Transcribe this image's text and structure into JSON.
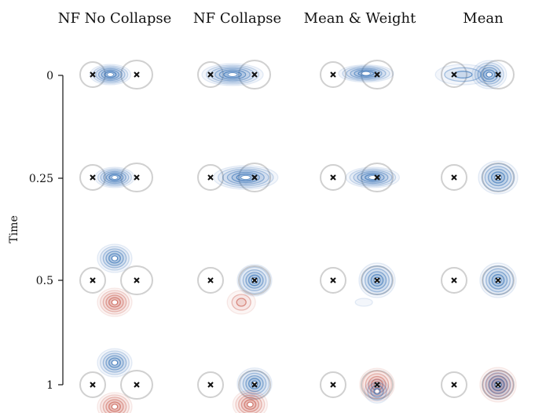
{
  "columns": [
    "NF No Collapse",
    "NF Collapse",
    "Mean & Weight",
    "Mean"
  ],
  "y_axis": {
    "label": "Time",
    "ticks": [
      "0",
      "0.25",
      "0.5",
      "1"
    ]
  },
  "colors": {
    "blue": "#2f6db5",
    "red": "#c8584a",
    "circle": "#d0d0d0",
    "marker": "#111111",
    "axis": "#111111"
  },
  "panels": [
    [
      {
        "blobs": [
          {
            "c": "blue",
            "dx": 0.4,
            "dy": 0.0,
            "w": 52,
            "h": 26,
            "rings": 7
          }
        ]
      },
      {
        "blobs": [
          {
            "c": "blue",
            "dx": 0.5,
            "dy": 0.0,
            "w": 78,
            "h": 28,
            "rings": 7
          }
        ]
      },
      {
        "blobs": [
          {
            "c": "blue",
            "dx": 0.75,
            "dy": -0.05,
            "w": 70,
            "h": 22,
            "rings": 7
          }
        ]
      },
      {
        "blobs": [
          {
            "c": "blue",
            "dx": 0.8,
            "dy": 0.0,
            "w": 44,
            "h": 36,
            "rings": 6
          },
          {
            "c": "blue",
            "dx": 0.2,
            "dy": 0.0,
            "w": 70,
            "h": 26,
            "rings": 3
          }
        ]
      }
    ],
    [
      {
        "blobs": [
          {
            "c": "blue",
            "dx": 0.5,
            "dy": 0.0,
            "w": 50,
            "h": 26,
            "rings": 7
          }
        ]
      },
      {
        "blobs": [
          {
            "c": "blue",
            "dx": 0.8,
            "dy": 0.0,
            "w": 82,
            "h": 30,
            "rings": 7
          }
        ]
      },
      {
        "blobs": [
          {
            "c": "blue",
            "dx": 0.9,
            "dy": 0.0,
            "w": 68,
            "h": 26,
            "rings": 7
          }
        ]
      },
      {
        "blobs": [
          {
            "c": "blue",
            "dx": 1.0,
            "dy": 0.0,
            "w": 50,
            "h": 42,
            "rings": 6
          }
        ]
      }
    ],
    [
      {
        "blobs": [
          {
            "c": "blue",
            "dx": 0.5,
            "dy": -1.0,
            "w": 44,
            "h": 36,
            "rings": 6
          },
          {
            "c": "red",
            "dx": 0.5,
            "dy": 1.0,
            "w": 44,
            "h": 36,
            "rings": 6
          }
        ]
      },
      {
        "blobs": [
          {
            "c": "blue",
            "dx": 1.0,
            "dy": 0.0,
            "w": 44,
            "h": 40,
            "rings": 6
          },
          {
            "c": "red",
            "dx": 0.7,
            "dy": 1.0,
            "w": 36,
            "h": 30,
            "rings": 3
          }
        ]
      },
      {
        "blobs": [
          {
            "c": "blue",
            "dx": 1.0,
            "dy": 0.0,
            "w": 46,
            "h": 44,
            "rings": 6
          },
          {
            "c": "blue",
            "dx": 0.7,
            "dy": 1.0,
            "w": 22,
            "h": 10,
            "rings": 1
          }
        ]
      },
      {
        "blobs": [
          {
            "c": "blue",
            "dx": 1.0,
            "dy": 0.0,
            "w": 46,
            "h": 44,
            "rings": 6
          }
        ]
      }
    ],
    [
      {
        "blobs": [
          {
            "c": "blue",
            "dx": 0.5,
            "dy": -1.0,
            "w": 44,
            "h": 36,
            "rings": 6
          },
          {
            "c": "red",
            "dx": 0.5,
            "dy": 1.0,
            "w": 44,
            "h": 36,
            "rings": 6
          }
        ]
      },
      {
        "blobs": [
          {
            "c": "blue",
            "dx": 1.0,
            "dy": -0.05,
            "w": 44,
            "h": 40,
            "rings": 6
          },
          {
            "c": "red",
            "dx": 0.9,
            "dy": 0.9,
            "w": 44,
            "h": 36,
            "rings": 6
          }
        ]
      },
      {
        "blobs": [
          {
            "c": "red",
            "dx": 1.0,
            "dy": 0.0,
            "w": 44,
            "h": 42,
            "rings": 6
          },
          {
            "c": "blue",
            "dx": 1.0,
            "dy": 0.3,
            "w": 32,
            "h": 30,
            "rings": 4
          }
        ]
      },
      {
        "blobs": [
          {
            "c": "red",
            "dx": 1.0,
            "dy": 0.0,
            "w": 46,
            "h": 44,
            "rings": 6
          },
          {
            "c": "blue",
            "dx": 1.0,
            "dy": 0.0,
            "w": 40,
            "h": 38,
            "rings": 5
          }
        ]
      }
    ]
  ]
}
